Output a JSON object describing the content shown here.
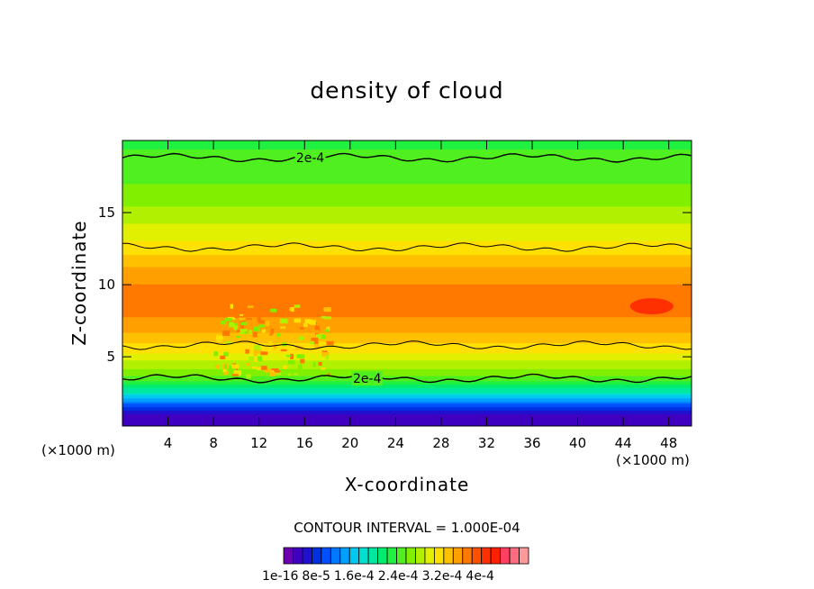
{
  "chart_data": {
    "type": "heatmap",
    "title": "density of cloud",
    "xlabel": "X-coordinate",
    "ylabel": "Z-coordinate",
    "x_unit": "(×1000 m)",
    "z_unit": "(×1000 m)",
    "xlim": [
      0,
      50
    ],
    "ylim": [
      0.2,
      20
    ],
    "x_ticks": [
      4,
      8,
      12,
      16,
      20,
      24,
      28,
      32,
      36,
      40,
      44,
      48
    ],
    "y_ticks": [
      5,
      10,
      15
    ],
    "contour_interval_text": "CONTOUR INTERVAL = 1.000E-04",
    "contour_labels": [
      {
        "text": "2e-4",
        "x": 16.5,
        "z": 18.8
      },
      {
        "text": "2e-4",
        "x": 21.5,
        "z": 3.5
      }
    ],
    "colorbar_labels": [
      "1e-16",
      "8e-5",
      "1.6e-4",
      "2.4e-4",
      "3.2e-4",
      "4e-4"
    ],
    "colorbar_colors": [
      "#6a00b0",
      "#4000c0",
      "#2010d0",
      "#0030e0",
      "#0050ff",
      "#0078ff",
      "#00a0ff",
      "#00c8f0",
      "#00e0d0",
      "#00e8a0",
      "#00ec70",
      "#20f040",
      "#50f020",
      "#80f000",
      "#b0f000",
      "#e0f000",
      "#ffe000",
      "#ffc000",
      "#ffa000",
      "#ff7800",
      "#ff5000",
      "#ff3000",
      "#ff2000",
      "#ff4060",
      "#ff6c80",
      "#ff9898"
    ],
    "value_profile": [
      {
        "z": 0.2,
        "v": 2e-05
      },
      {
        "z": 1.0,
        "v": 3e-05
      },
      {
        "z": 1.5,
        "v": 6e-05
      },
      {
        "z": 2.0,
        "v": 0.0001
      },
      {
        "z": 2.5,
        "v": 0.00014
      },
      {
        "z": 3.0,
        "v": 0.00017
      },
      {
        "z": 3.5,
        "v": 0.0002
      },
      {
        "z": 4.5,
        "v": 0.00023
      },
      {
        "z": 5.5,
        "v": 0.00026
      },
      {
        "z": 7.0,
        "v": 0.00029
      },
      {
        "z": 8.5,
        "v": 0.00031
      },
      {
        "z": 10.0,
        "v": 0.0003
      },
      {
        "z": 11.5,
        "v": 0.00028
      },
      {
        "z": 12.5,
        "v": 0.00026
      },
      {
        "z": 14.0,
        "v": 0.00024
      },
      {
        "z": 15.5,
        "v": 0.00022
      },
      {
        "z": 17.0,
        "v": 0.000205
      },
      {
        "z": 18.8,
        "v": 0.0002
      },
      {
        "z": 20.0,
        "v": 0.00018
      }
    ],
    "contour_lines": [
      {
        "name": "2e-4 upper",
        "z": 18.8
      },
      {
        "name": "upper",
        "z": 12.6
      },
      {
        "name": "lower",
        "z": 5.8
      },
      {
        "name": "2e-4 lower",
        "z": 3.5
      }
    ]
  }
}
